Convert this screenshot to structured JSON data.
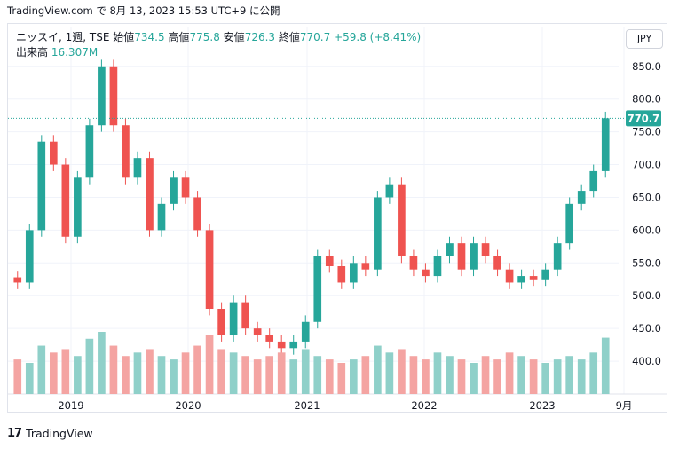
{
  "header": {
    "site": "TradingView.com",
    "sep": "で",
    "timestamp": "8月 13, 2023 15:53 UTC+9",
    "suffix": "に公開"
  },
  "legend": {
    "symbol": "ニッスイ, 1週, TSE",
    "open_label": "始値",
    "open": "734.5",
    "high_label": "高値",
    "high": "775.8",
    "low_label": "安値",
    "low": "726.3",
    "close_label": "終値",
    "close": "770.7",
    "change": "+59.8 (+8.41%)",
    "volume_label": "出来高",
    "volume": "16.307M"
  },
  "currency_button": "JPY",
  "footer": {
    "brand": "TradingView",
    "logo_text": "17"
  },
  "colors": {
    "up": "#26a69a",
    "down": "#ef5350",
    "vol_up": "#8fd0c9",
    "vol_down": "#f4a4a2",
    "grid": "#f0f3fa",
    "text": "#131722"
  },
  "chart_data": {
    "type": "candlestick",
    "title": "ニッスイ, 1週, TSE",
    "ylim": [
      350,
      870
    ],
    "y_ticks": [
      "400.0",
      "450.0",
      "500.0",
      "550.0",
      "600.0",
      "650.0",
      "700.0",
      "750.0",
      "800.0",
      "850.0"
    ],
    "x_ticks": [
      "2019",
      "2020",
      "2021",
      "2022",
      "2023",
      "9月"
    ],
    "last_price_label": "770.7",
    "last_price": 770.7,
    "x": [
      "2018-07",
      "2018-09",
      "2018-10",
      "2018-11",
      "2019-01",
      "2019-02",
      "2019-03",
      "2019-04",
      "2019-05",
      "2019-06",
      "2019-08",
      "2019-09",
      "2019-10",
      "2019-12",
      "2020-01",
      "2020-02",
      "2020-03",
      "2020-04",
      "2020-05",
      "2020-06",
      "2020-08",
      "2020-09",
      "2020-10",
      "2020-11",
      "2021-01",
      "2021-02",
      "2021-03",
      "2021-05",
      "2021-06",
      "2021-07",
      "2021-09",
      "2021-10",
      "2021-11",
      "2022-01",
      "2022-02",
      "2022-03",
      "2022-04",
      "2022-06",
      "2022-07",
      "2022-08",
      "2022-10",
      "2022-11",
      "2022-12",
      "2023-02",
      "2023-03",
      "2023-04",
      "2023-05",
      "2023-06",
      "2023-07",
      "2023-08"
    ],
    "close": [
      520,
      600,
      735,
      700,
      590,
      680,
      760,
      850,
      760,
      680,
      710,
      600,
      640,
      680,
      650,
      600,
      480,
      440,
      490,
      450,
      440,
      430,
      420,
      430,
      460,
      560,
      545,
      520,
      550,
      540,
      650,
      670,
      560,
      540,
      530,
      560,
      580,
      540,
      580,
      560,
      540,
      520,
      530,
      525,
      540,
      580,
      640,
      660,
      690,
      770.7
    ],
    "volume_m": [
      10,
      9,
      14,
      12,
      13,
      11,
      16,
      18,
      14,
      11,
      12,
      13,
      11,
      10,
      12,
      14,
      17,
      13,
      12,
      11,
      10,
      11,
      12,
      10,
      13,
      11,
      10,
      9,
      10,
      11,
      14,
      12,
      13,
      11,
      10,
      12,
      11,
      10,
      9,
      11,
      10,
      12,
      11,
      10,
      9,
      10,
      11,
      10,
      12,
      16.307
    ]
  }
}
